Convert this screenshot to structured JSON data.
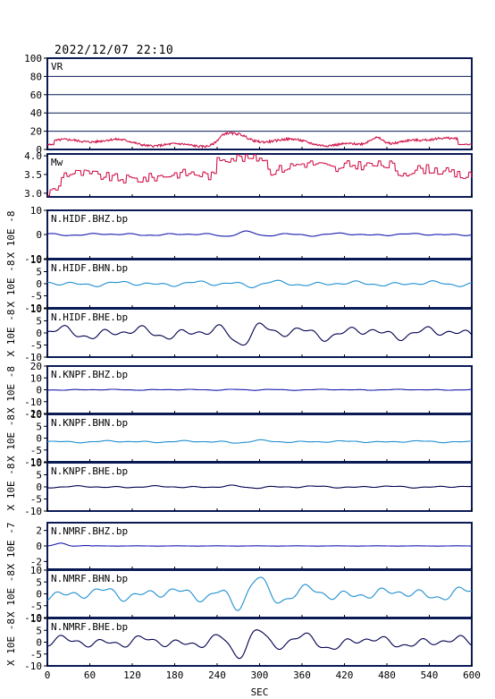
{
  "header": {
    "title": "2022/12/07  22:10"
  },
  "colors": {
    "vr": "#d0144a",
    "mw": "#d0144a",
    "bhz": "#1a1ab0",
    "bhn": "#1f8fd0",
    "bhe": "#000050",
    "frame": "#0a1a55"
  },
  "chart_data": {
    "type": "line",
    "xlabel": "SEC",
    "xlim": [
      0,
      600
    ],
    "xticks": [
      "0",
      "60",
      "120",
      "180",
      "240",
      "300",
      "360",
      "420",
      "480",
      "540",
      "600"
    ],
    "panels": [
      {
        "label": "VR",
        "ylabel": "",
        "ylim": [
          0,
          100
        ],
        "yticks": [
          "100",
          "80",
          "60",
          "40",
          "20",
          "0"
        ],
        "tickvals": [
          100,
          80,
          60,
          40,
          20,
          0
        ],
        "grid": true,
        "color_key": "vr",
        "series": {
          "kind": "vr"
        }
      },
      {
        "label": "Mw",
        "ylabel": "",
        "ylim": [
          2.9,
          4.05
        ],
        "yticks": [
          "4.0",
          "3.5",
          "3.0"
        ],
        "tickvals": [
          4.0,
          3.5,
          3.0
        ],
        "grid": false,
        "color_key": "mw",
        "series": {
          "kind": "mw"
        }
      },
      {
        "label": "N.HIDF.BHZ.bp",
        "ylabel": "X 10E -8",
        "ylim": [
          -10,
          10
        ],
        "yticks": [
          "10",
          "0",
          "-10"
        ],
        "tickvals": [
          10,
          0,
          -10
        ],
        "color_key": "bhz",
        "series": {
          "kind": "wave",
          "amp": 0.4,
          "seed": 3,
          "burst": 0.6
        }
      },
      {
        "label": "N.HIDF.BHN.bp",
        "ylabel": "X 10E -8",
        "ylim": [
          -10,
          10
        ],
        "yticks": [
          "10",
          "5",
          "0",
          "-5",
          "-10"
        ],
        "tickvals": [
          10,
          5,
          0,
          -5,
          -10
        ],
        "color_key": "bhn",
        "series": {
          "kind": "wave",
          "amp": 0.9,
          "seed": 7,
          "burst": 0.4
        }
      },
      {
        "label": "N.HIDF.BHE.bp",
        "ylabel": "X 10E -8",
        "ylim": [
          -10,
          10
        ],
        "yticks": [
          "10",
          "5",
          "0",
          "-5",
          "-10"
        ],
        "tickvals": [
          10,
          5,
          0,
          -5,
          -10
        ],
        "color_key": "bhe",
        "series": {
          "kind": "wave",
          "amp": 2.2,
          "seed": 11,
          "burst": 1.9
        }
      },
      {
        "label": "N.KNPF.BHZ.bp",
        "ylabel": "X 10E -8",
        "ylim": [
          -20,
          20
        ],
        "yticks": [
          "20",
          "10",
          "0",
          "-10",
          "-20"
        ],
        "tickvals": [
          20,
          10,
          0,
          -10,
          -20
        ],
        "color_key": "bhz",
        "series": {
          "kind": "wave",
          "amp": 0.35,
          "seed": 13,
          "burst": 0.2
        }
      },
      {
        "label": "N.KNPF.BHN.bp",
        "ylabel": "X 10E -8",
        "ylim": [
          -10,
          10
        ],
        "yticks": [
          "10",
          "5",
          "0",
          "-5",
          "-10"
        ],
        "tickvals": [
          10,
          5,
          0,
          -5,
          -10
        ],
        "color_key": "bhn",
        "series": {
          "kind": "wave",
          "amp": 0.35,
          "seed": 17,
          "burst": 0.2,
          "offset": -1.5
        }
      },
      {
        "label": "N.KNPF.BHE.bp",
        "ylabel": "X 10E -8",
        "ylim": [
          -10,
          10
        ],
        "yticks": [
          "10",
          "5",
          "0",
          "-5",
          "-10"
        ],
        "tickvals": [
          10,
          5,
          0,
          -5,
          -10
        ],
        "color_key": "bhe",
        "series": {
          "kind": "wave",
          "amp": 0.35,
          "seed": 19,
          "burst": 0.2
        }
      },
      {
        "label": "N.NMRF.BHZ.bp",
        "ylabel": "X 10E -7",
        "ylim": [
          -3,
          3
        ],
        "yticks": [
          "2",
          "0",
          "-2"
        ],
        "tickvals": [
          2,
          0,
          -2
        ],
        "color_key": "bhz",
        "series": {
          "kind": "bhz_nmrf"
        }
      },
      {
        "label": "N.NMRF.BHN.bp",
        "ylabel": "X 10E -8",
        "ylim": [
          -10,
          10
        ],
        "yticks": [
          "10",
          "5",
          "0",
          "-5",
          "-10"
        ],
        "tickvals": [
          10,
          5,
          0,
          -5,
          -10
        ],
        "color_key": "bhn",
        "series": {
          "kind": "wave",
          "amp": 2.4,
          "seed": 23,
          "burst": 3.6
        }
      },
      {
        "label": "N.NMRF.BHE.bp",
        "ylabel": "X 10E -8",
        "ylim": [
          -10,
          10
        ],
        "yticks": [
          "10",
          "5",
          "0",
          "-5",
          "-10"
        ],
        "tickvals": [
          10,
          5,
          0,
          -5,
          -10
        ],
        "color_key": "bhe",
        "series": {
          "kind": "wave",
          "amp": 2.2,
          "seed": 29,
          "burst": 3.4
        }
      }
    ]
  }
}
